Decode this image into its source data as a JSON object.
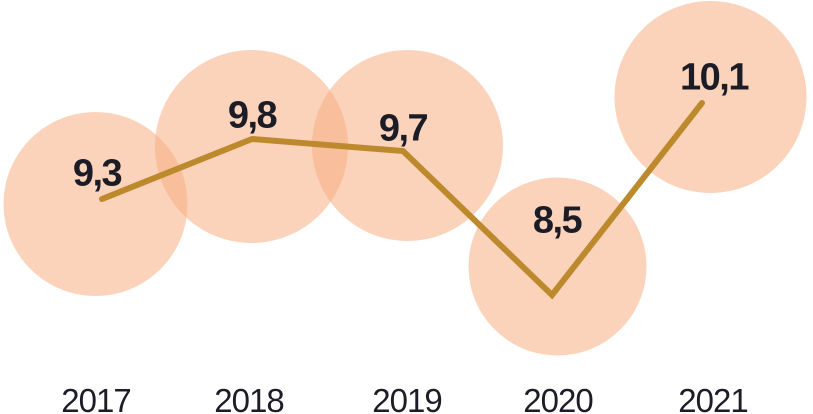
{
  "chart_data": {
    "type": "line",
    "title": "",
    "categories": [
      "2017",
      "2018",
      "2019",
      "2020",
      "2021"
    ],
    "values": [
      9.3,
      9.8,
      9.7,
      8.5,
      10.1
    ],
    "value_labels": [
      "9,3",
      "9,8",
      "9,7",
      "8,5",
      "10,1"
    ],
    "decimal_style": "comma",
    "series_style": "bubble-behind-line",
    "ylim": [
      8.5,
      10.1
    ],
    "grid": false,
    "legend": false,
    "colors": {
      "bubble_fill": "#f7ab7e",
      "bubble_opacity": 0.53,
      "line": "#bc8a2d",
      "value_text": "#1c1c26",
      "axis_text": "#1d1d28",
      "background": "#ffffff"
    }
  }
}
